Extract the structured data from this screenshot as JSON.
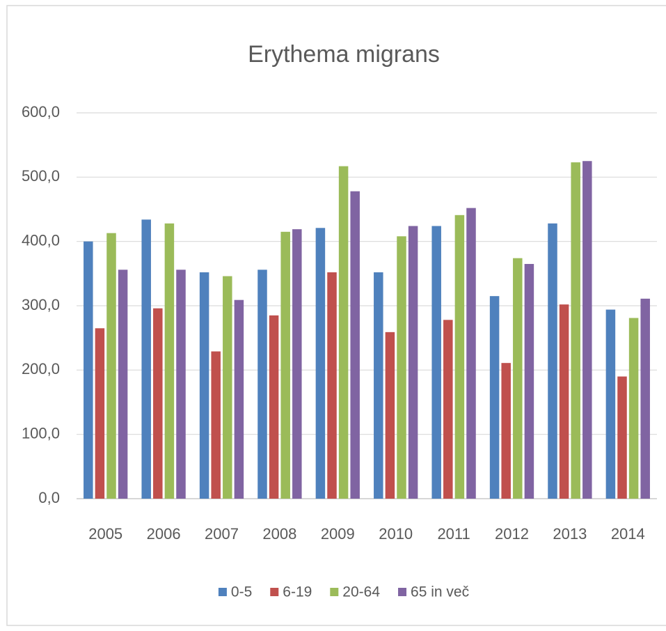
{
  "chart_data": {
    "type": "bar",
    "title": "Erythema migrans",
    "categories": [
      "2005",
      "2006",
      "2007",
      "2008",
      "2009",
      "2010",
      "2011",
      "2012",
      "2013",
      "2014"
    ],
    "series": [
      {
        "name": "0-5",
        "color": "#4f81bd",
        "values": [
          400,
          434,
          352,
          356,
          421,
          352,
          424,
          315,
          428,
          294
        ]
      },
      {
        "name": "6-19",
        "color": "#c0504d",
        "values": [
          265,
          296,
          229,
          285,
          352,
          259,
          278,
          211,
          302,
          190
        ]
      },
      {
        "name": "20-64",
        "color": "#9bbb59",
        "values": [
          413,
          428,
          346,
          415,
          517,
          408,
          441,
          374,
          523,
          281
        ]
      },
      {
        "name": "65 in več",
        "color": "#8064a2",
        "values": [
          356,
          356,
          309,
          419,
          478,
          424,
          452,
          365,
          525,
          311
        ]
      }
    ],
    "ylim": [
      0,
      600
    ],
    "yticks": [
      {
        "value": 0,
        "label": "0,0"
      },
      {
        "value": 100,
        "label": "100,0"
      },
      {
        "value": 200,
        "label": "200,0"
      },
      {
        "value": 300,
        "label": "300,0"
      },
      {
        "value": 400,
        "label": "400,0"
      },
      {
        "value": 500,
        "label": "500,0"
      },
      {
        "value": 600,
        "label": "600,0"
      }
    ],
    "grid": true,
    "legend": "bottom"
  }
}
